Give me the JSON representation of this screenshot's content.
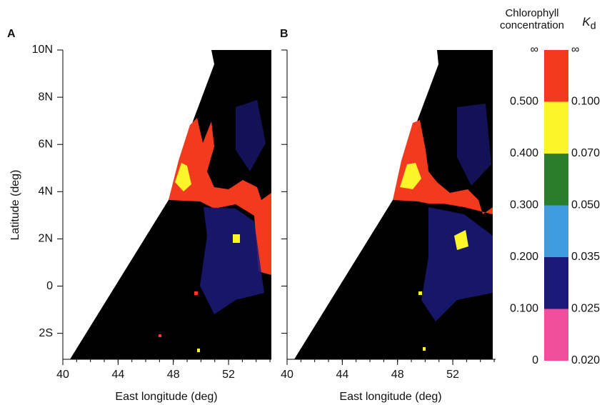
{
  "panels": [
    {
      "label": "A"
    },
    {
      "label": "B"
    }
  ],
  "axes": {
    "y_label": "Latitude (deg)",
    "x_label": "East longitude (deg)",
    "xlim": [
      40,
      55.1
    ],
    "ylim": [
      -3.1,
      10
    ],
    "xticks": [
      40,
      44,
      48,
      52
    ],
    "yticks": [
      {
        "value": 10,
        "label": "10N"
      },
      {
        "value": 8,
        "label": "8N"
      },
      {
        "value": 6,
        "label": "6N"
      },
      {
        "value": 4,
        "label": "4N"
      },
      {
        "value": 2,
        "label": "2N"
      },
      0,
      {
        "value": -2,
        "label": "2S"
      }
    ]
  },
  "colorbar": {
    "title_left": "Chlorophyll concentration",
    "title_right": {
      "symbol": "K",
      "subscript": "d"
    },
    "colors": [
      "#f23a1e",
      "#fbf52a",
      "#2a7d2a",
      "#3d9be0",
      "#1b1a7a",
      "#ef4f9a"
    ],
    "chlorophyll_labels": [
      "∞",
      {
        "value": 0.5,
        "label": "0.500"
      },
      {
        "value": 0.4,
        "label": "0.400"
      },
      {
        "value": 0.3,
        "label": "0.300"
      },
      {
        "value": 0.2,
        "label": "0.200"
      },
      {
        "value": 0.1,
        "label": "0.100"
      },
      0
    ],
    "kd_labels": [
      "∞",
      {
        "value": 0.1,
        "label": "0.100"
      },
      {
        "value": 0.07,
        "label": "0.070"
      },
      {
        "value": 0.05,
        "label": "0.050"
      },
      {
        "value": 0.035,
        "label": "0.035"
      },
      {
        "value": 0.025,
        "label": "0.025"
      },
      {
        "value": 0.02,
        "label": "0.020"
      }
    ]
  }
}
